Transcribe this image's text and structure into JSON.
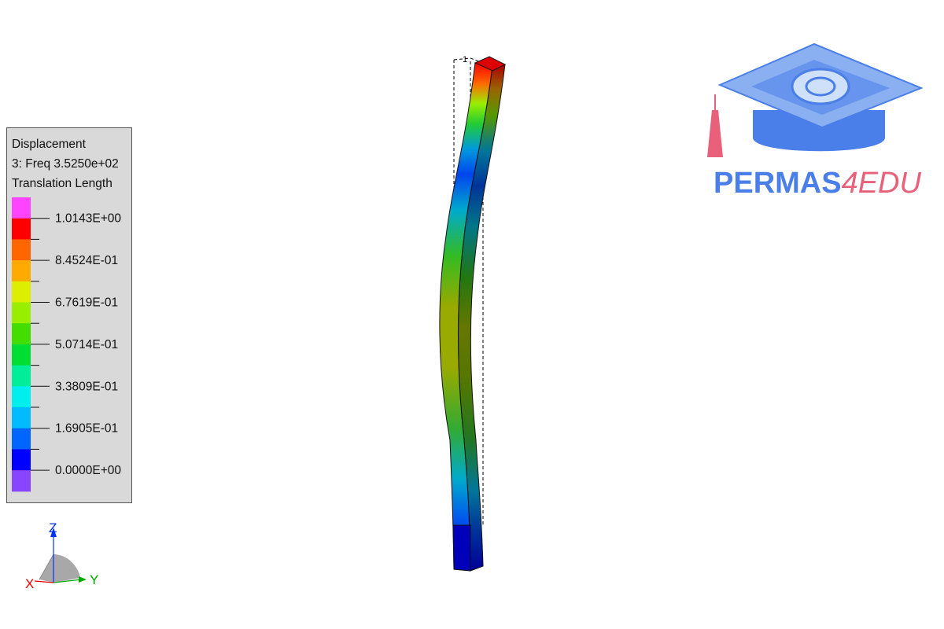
{
  "legend": {
    "title_line1": "Displacement",
    "title_line2": "3: Freq 3.5250e+02",
    "title_line3": "Translation Length",
    "colors": [
      "#ff44ff",
      "#ff0000",
      "#ff6600",
      "#ffaa00",
      "#ddee00",
      "#99ee00",
      "#44dd00",
      "#00dd33",
      "#00ee99",
      "#00eeee",
      "#00bbff",
      "#0066ff",
      "#0000ff",
      "#8844ff"
    ],
    "labels": [
      "1.0143E+00",
      "8.4524E-01",
      "6.7619E-01",
      "5.0714E-01",
      "3.3809E-01",
      "1.6905E-01",
      "0.0000E+00"
    ]
  },
  "axes": {
    "z": "Z",
    "x": "X",
    "y": "Y",
    "z_color": "#0033ff",
    "x_color": "#ee0000",
    "y_color": "#00aa00"
  },
  "node_label": "1",
  "logo": {
    "word1": "PERMAS",
    "word2": "4EDU",
    "primary_color": "#4a7ee8",
    "accent_color": "#e8607a"
  }
}
